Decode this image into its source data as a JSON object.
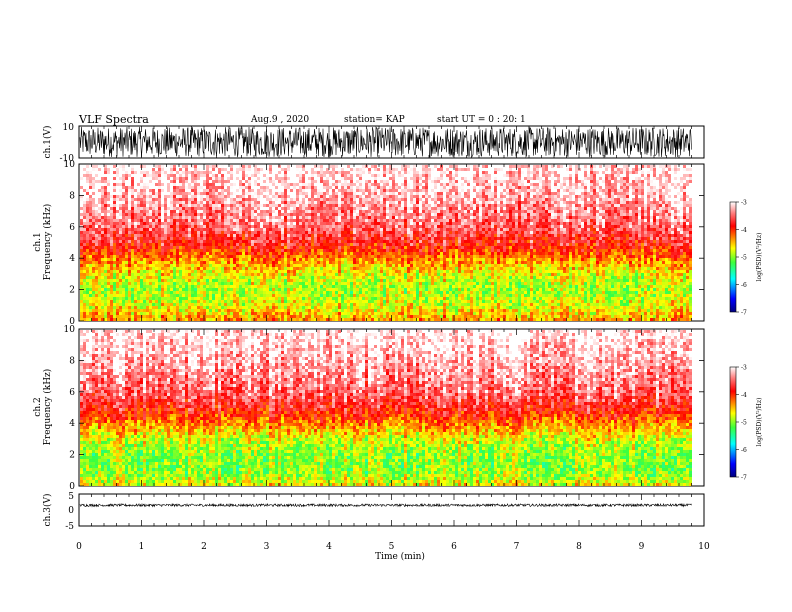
{
  "header": {
    "title": "VLF Spectra",
    "date": "Aug.9 , 2020",
    "station": "station= KAP",
    "start": "start UT = 0 : 20: 1"
  },
  "colors": {
    "spectro_ramp": [
      "#00007f",
      "#0000ff",
      "#00ffff",
      "#3cff3c",
      "#ffff00",
      "#ff7f00",
      "#ff0000",
      "#ffffff"
    ],
    "waveform": "#000000"
  },
  "chart_data": [
    {
      "type": "line",
      "name": "ch1-waveform",
      "ylabel": "ch.1(V)",
      "ylim": [
        -10,
        10
      ],
      "yticks": [
        "10",
        "-10"
      ],
      "x_range_min": [
        0,
        9.8
      ],
      "description_values": {
        "typical_amplitude_min": -9.5,
        "typical_amplitude_max": 9.5
      }
    },
    {
      "type": "heatmap",
      "name": "ch1-spectrogram",
      "ylabel_lines": [
        "ch.1",
        "Frequency (kHz)"
      ],
      "ylim": [
        0,
        10
      ],
      "yticks": [
        "0",
        "2",
        "4",
        "6",
        "8",
        "10"
      ],
      "x_range_min": [
        0,
        9.8
      ],
      "colorbar": {
        "label": "log(PSD)(V²/Hz)",
        "range": [
          -7,
          -3
        ],
        "ticks": [
          "-3",
          "-4",
          "-5",
          "-6",
          "-7"
        ]
      },
      "band_profile": {
        "freq_khz": [
          0,
          1,
          2,
          3,
          4,
          5,
          6,
          8,
          10
        ],
        "log_psd": [
          -4.3,
          -4.7,
          -4.9,
          -4.7,
          -4.3,
          -3.8,
          -3.5,
          -3.2,
          -3.0
        ]
      }
    },
    {
      "type": "heatmap",
      "name": "ch2-spectrogram",
      "ylabel_lines": [
        "ch.2",
        "Frequency (kHz)"
      ],
      "ylim": [
        0,
        10
      ],
      "yticks": [
        "0",
        "2",
        "4",
        "6",
        "8",
        "10"
      ],
      "x_range_min": [
        0,
        9.8
      ],
      "colorbar": {
        "label": "log(PSD)(V²/Hz)",
        "range": [
          -7,
          -3
        ],
        "ticks": [
          "-3",
          "-4",
          "-5",
          "-6",
          "-7"
        ]
      },
      "band_profile": {
        "freq_khz": [
          0,
          1,
          2,
          3,
          4,
          5,
          6,
          8,
          10
        ],
        "log_psd": [
          -4.6,
          -5.0,
          -5.0,
          -4.8,
          -4.3,
          -3.8,
          -3.5,
          -3.2,
          -3.0
        ]
      }
    },
    {
      "type": "line",
      "name": "ch3-waveform",
      "ylabel": "ch.3(V)",
      "ylim": [
        -5,
        5
      ],
      "yticks": [
        "5",
        "0",
        "-5"
      ],
      "x_range_min": [
        0,
        9.8
      ],
      "description_values": {
        "typical_amplitude_min": 1.1,
        "typical_amplitude_max": 1.9
      }
    }
  ],
  "xaxis": {
    "label": "Time (min)",
    "range": [
      0,
      10
    ],
    "ticks": [
      "0",
      "1",
      "2",
      "3",
      "4",
      "5",
      "6",
      "7",
      "8",
      "9",
      "10"
    ]
  }
}
